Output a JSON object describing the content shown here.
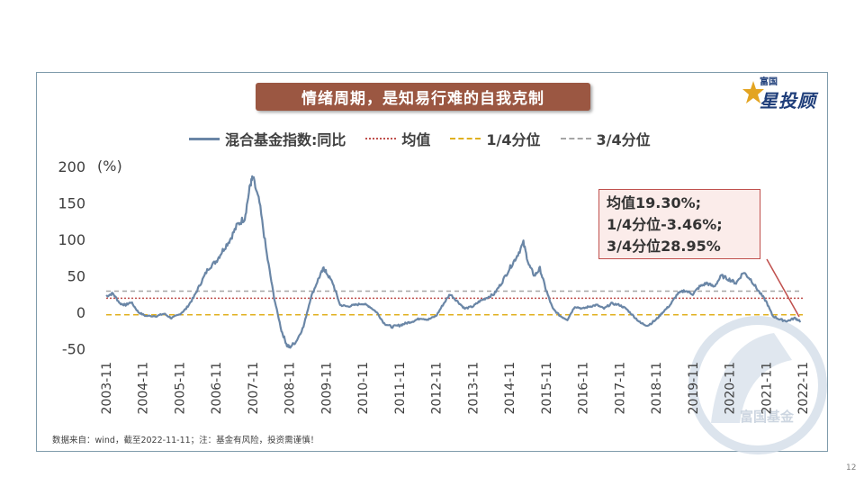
{
  "slide": {
    "title": "情绪周期，是知易行难的自我克制",
    "logo_small": "富国",
    "logo_big": "星投顾",
    "watermark": "富国基金",
    "footnote": "数据来自：wind，截至2022-11-11；注：基金有风险，投资需谨慎！",
    "page_number": "12",
    "annotation_lines": [
      "均值19.30%;",
      "1/4分位-3.46%;",
      "3/4分位28.95%"
    ]
  },
  "colors": {
    "series": "#6a86a6",
    "mean": "#c0504d",
    "q1": "#e0b020",
    "q3": "#a6a6a6",
    "title_bg": "#9b5742",
    "panel_border": "#7f9bab"
  },
  "chart_data": {
    "type": "line",
    "title": "",
    "ylabel": "(%)",
    "ylim": [
      -50,
      200
    ],
    "yticks": [
      200,
      150,
      100,
      50,
      0,
      -50
    ],
    "xticks": [
      "2003-11",
      "2004-11",
      "2005-11",
      "2006-11",
      "2007-11",
      "2008-11",
      "2009-11",
      "2010-11",
      "2011-11",
      "2012-11",
      "2013-11",
      "2014-11",
      "2015-11",
      "2016-11",
      "2017-11",
      "2018-11",
      "2019-11",
      "2020-11",
      "2021-11",
      "2022-11"
    ],
    "legend_placement": "top",
    "series": [
      {
        "name": "混合基金指数:同比",
        "x": [
          2003.92,
          2004.1,
          2004.3,
          2004.45,
          2004.6,
          2004.8,
          2005.0,
          2005.3,
          2005.5,
          2005.7,
          2005.92,
          2006.1,
          2006.3,
          2006.5,
          2006.7,
          2006.92,
          2007.1,
          2007.3,
          2007.5,
          2007.7,
          2007.85,
          2007.92,
          2008.1,
          2008.3,
          2008.5,
          2008.7,
          2008.85,
          2008.92,
          2009.1,
          2009.3,
          2009.5,
          2009.7,
          2009.85,
          2009.92,
          2010.1,
          2010.3,
          2010.5,
          2010.7,
          2010.92,
          2011.1,
          2011.3,
          2011.5,
          2011.7,
          2011.92,
          2012.1,
          2012.3,
          2012.5,
          2012.7,
          2012.92,
          2013.1,
          2013.3,
          2013.5,
          2013.7,
          2013.92,
          2014.1,
          2014.3,
          2014.5,
          2014.7,
          2014.92,
          2015.1,
          2015.3,
          2015.45,
          2015.6,
          2015.75,
          2015.92,
          2016.1,
          2016.3,
          2016.5,
          2016.7,
          2016.92,
          2017.1,
          2017.3,
          2017.5,
          2017.7,
          2017.92,
          2018.1,
          2018.3,
          2018.5,
          2018.7,
          2018.92,
          2019.1,
          2019.3,
          2019.5,
          2019.7,
          2019.92,
          2020.1,
          2020.3,
          2020.5,
          2020.7,
          2020.92,
          2021.1,
          2021.3,
          2021.5,
          2021.7,
          2021.92,
          2022.1,
          2022.3,
          2022.5,
          2022.7,
          2022.86
        ],
        "y": [
          22,
          26,
          12,
          10,
          14,
          0,
          -5,
          -5,
          -2,
          -8,
          -3,
          5,
          20,
          40,
          60,
          70,
          85,
          100,
          120,
          130,
          175,
          185,
          150,
          80,
          20,
          -25,
          -45,
          -48,
          -40,
          -20,
          20,
          45,
          60,
          55,
          40,
          10,
          8,
          10,
          12,
          8,
          0,
          -15,
          -20,
          -18,
          -15,
          -12,
          -8,
          -10,
          -5,
          10,
          25,
          15,
          5,
          8,
          15,
          20,
          25,
          40,
          60,
          75,
          95,
          65,
          50,
          60,
          30,
          5,
          -5,
          -10,
          8,
          5,
          8,
          10,
          5,
          12,
          10,
          5,
          -5,
          -15,
          -18,
          -10,
          0,
          10,
          25,
          30,
          25,
          35,
          40,
          35,
          50,
          45,
          40,
          55,
          45,
          30,
          15,
          -5,
          -10,
          -12,
          -8,
          -12
        ]
      },
      {
        "name": "均值",
        "value": 19.3
      },
      {
        "name": "1/4分位",
        "value": -3.46
      },
      {
        "name": "3/4分位",
        "value": 28.95
      }
    ]
  }
}
